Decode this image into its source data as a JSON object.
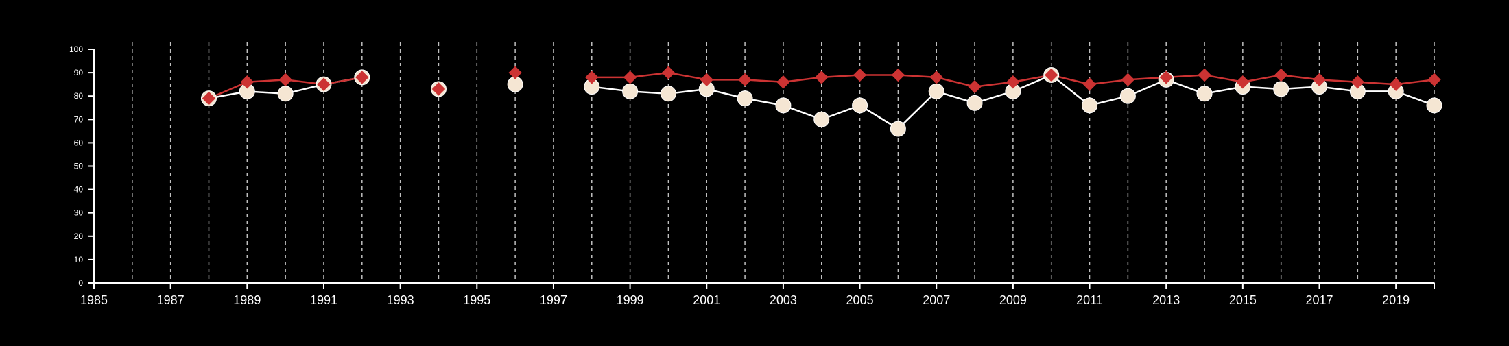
{
  "chart_data": {
    "type": "line",
    "title": "",
    "xlabel": "",
    "ylabel": "",
    "xlim": [
      1985,
      2020
    ],
    "ylim": [
      0,
      100
    ],
    "x_ticks": [
      1985,
      1987,
      1989,
      1991,
      1993,
      1995,
      1997,
      1999,
      2001,
      2003,
      2005,
      2007,
      2009,
      2011,
      2013,
      2015,
      2017,
      2019
    ],
    "x_tick_labels": [
      "1985",
      "1987",
      "1989",
      "1991",
      "1993",
      "1995",
      "1997",
      "1999",
      "2001",
      "2003",
      "2005",
      "2007",
      "2009",
      "2011",
      "2013",
      "2015",
      "2017",
      "2019"
    ],
    "y_ticks": [
      0,
      10,
      20,
      30,
      40,
      50,
      60,
      70,
      80,
      90,
      100
    ],
    "y_tick_labels": [
      "0",
      "10",
      "20",
      "30",
      "40",
      "50",
      "60",
      "70",
      "80",
      "90",
      "100"
    ],
    "vertical_grid": "dashed lines at every year from 1986 to 2020",
    "legend": "none",
    "background": "#000000",
    "axis_color": "#ffffff",
    "grid_color": "#bfbfbf",
    "series": [
      {
        "marker": "circle",
        "color": "#f5e6d3",
        "line_color": "#ffffff",
        "points": [
          [
            1988,
            79
          ],
          [
            1989,
            82
          ],
          [
            1990,
            81
          ],
          [
            1991,
            85
          ],
          [
            1992,
            88
          ],
          [
            null,
            null
          ],
          [
            1994,
            83
          ],
          [
            null,
            null
          ],
          [
            1996,
            85
          ],
          [
            null,
            null
          ],
          [
            1998,
            84
          ],
          [
            1999,
            82
          ],
          [
            2000,
            81
          ],
          [
            2001,
            83
          ],
          [
            2002,
            79
          ],
          [
            2003,
            76
          ],
          [
            2004,
            70
          ],
          [
            2005,
            76
          ],
          [
            2006,
            66
          ],
          [
            2007,
            82
          ],
          [
            2008,
            77
          ],
          [
            2009,
            82
          ],
          [
            2010,
            89
          ],
          [
            2011,
            76
          ],
          [
            2012,
            80
          ],
          [
            2013,
            87
          ],
          [
            2014,
            81
          ],
          [
            2015,
            84
          ],
          [
            2016,
            83
          ],
          [
            2017,
            84
          ],
          [
            2018,
            82
          ],
          [
            2019,
            82
          ],
          [
            2020,
            76
          ]
        ]
      },
      {
        "marker": "diamond",
        "color": "#cc3333",
        "line_color": "#cc3333",
        "points": [
          [
            1988,
            79
          ],
          [
            1989,
            86
          ],
          [
            1990,
            87
          ],
          [
            1991,
            85
          ],
          [
            1992,
            88
          ],
          [
            null,
            null
          ],
          [
            1994,
            83
          ],
          [
            null,
            null
          ],
          [
            1996,
            90
          ],
          [
            null,
            null
          ],
          [
            1998,
            88
          ],
          [
            1999,
            88
          ],
          [
            2000,
            90
          ],
          [
            2001,
            87
          ],
          [
            2002,
            87
          ],
          [
            2003,
            86
          ],
          [
            2004,
            88
          ],
          [
            2005,
            89
          ],
          [
            2006,
            89
          ],
          [
            2007,
            88
          ],
          [
            2008,
            84
          ],
          [
            2009,
            86
          ],
          [
            2010,
            89
          ],
          [
            2011,
            85
          ],
          [
            2012,
            87
          ],
          [
            2013,
            88
          ],
          [
            2014,
            89
          ],
          [
            2015,
            86
          ],
          [
            2016,
            89
          ],
          [
            2017,
            87
          ],
          [
            2018,
            86
          ],
          [
            2019,
            85
          ],
          [
            2020,
            87
          ]
        ]
      }
    ]
  }
}
